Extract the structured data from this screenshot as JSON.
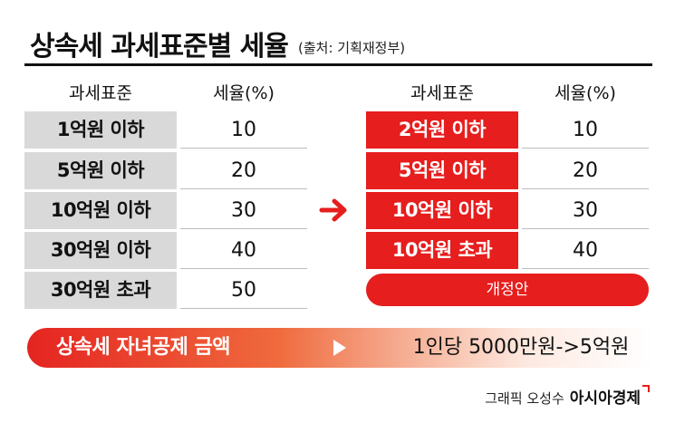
{
  "title": {
    "main": "상속세 과세표준별 세율",
    "source": "(출처: 기획재정부)"
  },
  "current_table": {
    "headers": [
      "과세표준",
      "세율(%)"
    ],
    "rows": [
      {
        "band": "1억원 이하",
        "rate": "10"
      },
      {
        "band": "5억원 이하",
        "rate": "20"
      },
      {
        "band": "10억원 이하",
        "rate": "30"
      },
      {
        "band": "30억원 이하",
        "rate": "40"
      },
      {
        "band": "30억원 초과",
        "rate": "50"
      }
    ]
  },
  "revised_table": {
    "headers": [
      "과세표준",
      "세율(%)"
    ],
    "rows": [
      {
        "band": "2억원 이하",
        "rate": "10"
      },
      {
        "band": "5억원 이하",
        "rate": "20"
      },
      {
        "band": "10억원 이하",
        "rate": "30"
      },
      {
        "band": "10억원 초과",
        "rate": "40"
      }
    ],
    "badge": "개정안"
  },
  "deduction": {
    "label": "상속세 자녀공제 금액",
    "value": "1인당 5000만원->5억원"
  },
  "credit": {
    "text": "그래픽 오성수",
    "brand": "아시아경제"
  },
  "icons": {
    "arrow": "right-arrow-icon",
    "play": "play-triangle-icon"
  },
  "colors": {
    "accent": "#e61e1e",
    "current_band_bg": "#d9d9d9"
  }
}
